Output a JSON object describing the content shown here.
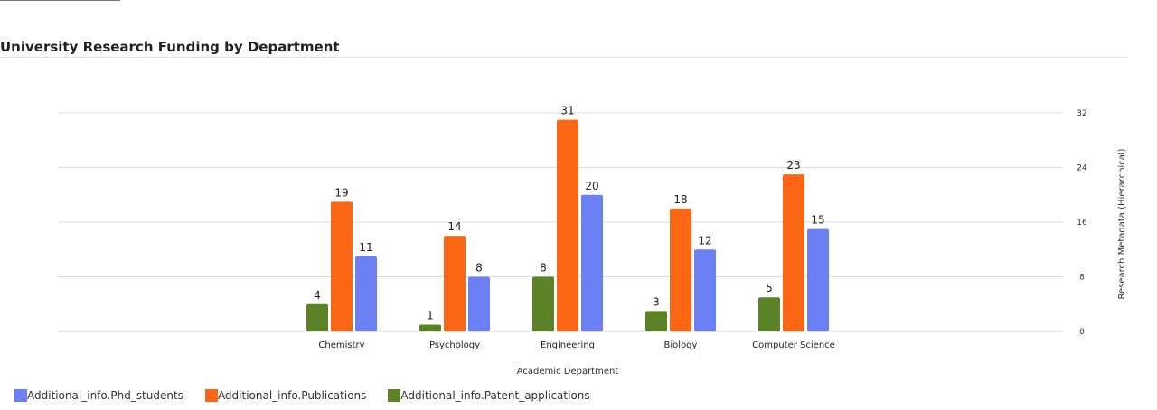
{
  "title": "University Research Funding by Department",
  "chart_data": {
    "type": "bar",
    "title": "University Research Funding by Department",
    "xlabel": "Academic Department",
    "ylabel": "Research Metadata (Hierarchical)",
    "y_axis_side": "right",
    "ylim": [
      0,
      32
    ],
    "yticks": [
      0,
      8,
      16,
      24,
      32
    ],
    "grid": true,
    "legend_position": "bottom-left",
    "categories": [
      "Chemistry",
      "Psychology",
      "Engineering",
      "Biology",
      "Computer Science"
    ],
    "series": [
      {
        "name": "Additional_info.Patent_applications",
        "color": "#5b8225",
        "values": [
          4,
          1,
          8,
          3,
          5
        ]
      },
      {
        "name": "Additional_info.Publications",
        "color": "#fb6614",
        "values": [
          19,
          14,
          31,
          18,
          23
        ]
      },
      {
        "name": "Additional_info.Phd_students",
        "color": "#6b80f4",
        "values": [
          11,
          8,
          20,
          12,
          15
        ]
      }
    ],
    "legend_order": [
      2,
      1,
      0
    ]
  }
}
